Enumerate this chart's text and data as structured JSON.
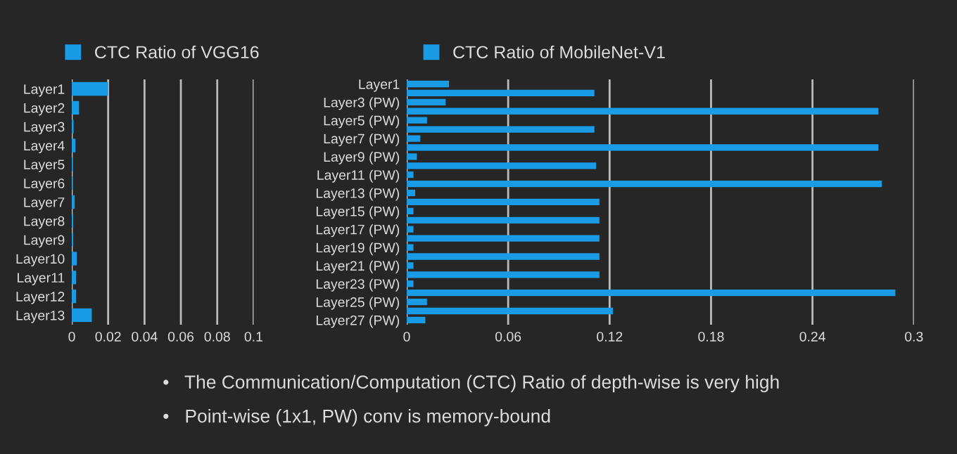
{
  "chart_data": [
    {
      "type": "bar",
      "orientation": "horizontal",
      "categories": [
        "Layer1",
        "Layer2",
        "Layer3",
        "Layer4",
        "Layer5",
        "Layer6",
        "Layer7",
        "Layer8",
        "Layer9",
        "Layer10",
        "Layer11",
        "Layer12",
        "Layer13"
      ],
      "series": [
        {
          "name": "CTC Ratio of VGG16",
          "color": "#1a9be6",
          "values": [
            0.02,
            0.004,
            0.001,
            0.002,
            0.0005,
            0.0003,
            0.0016,
            0.0008,
            0.0008,
            0.0027,
            0.0024,
            0.0024,
            0.011
          ]
        }
      ],
      "xlim": [
        0,
        0.1
      ],
      "xticks": [
        0,
        0.02,
        0.04,
        0.06,
        0.08,
        0.1
      ],
      "grid": "x",
      "legend": "top"
    },
    {
      "type": "bar",
      "orientation": "horizontal",
      "categories": [
        "Layer1",
        null,
        "Layer3 (PW)",
        null,
        "Layer5 (PW)",
        null,
        "Layer7 (PW)",
        null,
        "Layer9 (PW)",
        null,
        "Layer11 (PW)",
        null,
        "Layer13 (PW)",
        null,
        "Layer15 (PW)",
        null,
        "Layer17 (PW)",
        null,
        "Layer19 (PW)",
        null,
        "Layer21 (PW)",
        null,
        "Layer23 (PW)",
        null,
        "Layer25 (PW)",
        null,
        "Layer27 (PW)"
      ],
      "series": [
        {
          "name": "CTC Ratio of MobileNet-V1",
          "color": "#1a9be6",
          "values": [
            0.025,
            0.111,
            0.023,
            0.279,
            0.012,
            0.111,
            0.008,
            0.279,
            0.006,
            0.112,
            0.004,
            0.281,
            0.005,
            0.114,
            0.004,
            0.114,
            0.004,
            0.114,
            0.004,
            0.114,
            0.004,
            0.114,
            0.004,
            0.289,
            0.012,
            0.122,
            0.011
          ]
        }
      ],
      "xlim": [
        0,
        0.3
      ],
      "xticks": [
        0,
        0.06,
        0.12,
        0.18,
        0.24,
        0.3
      ],
      "grid": "x",
      "legend": "top left",
      "annotations": [
        "•   The Communication/Computation (CTC) Ratio of depth-wise is very high",
        "•   Point-wise (1x1, PW) conv is memory-bound"
      ]
    }
  ]
}
